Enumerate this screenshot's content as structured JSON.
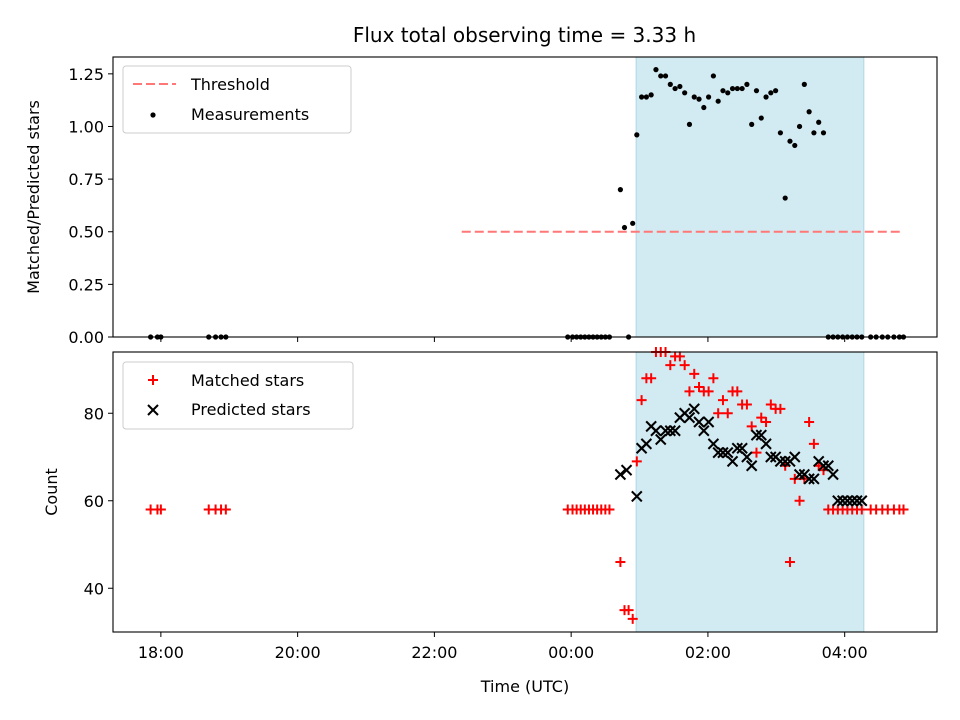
{
  "chart_data": [
    {
      "type": "scatter",
      "title": "Flux total observing time = 3.33 h",
      "ylabel": "Matched/Predicted stars",
      "ylim": [
        0,
        1.33
      ],
      "yticks": [
        "0.00",
        "0.25",
        "0.50",
        "0.75",
        "1.00",
        "1.25"
      ],
      "ytick_values": [
        0,
        0.25,
        0.5,
        0.75,
        1.0,
        1.25
      ],
      "grid": false,
      "legend": "top-left",
      "shaded_interval_hours": [
        0.95,
        4.28
      ],
      "shade_color": "#add8e6",
      "threshold": {
        "name": "Threshold",
        "y": 0.5,
        "x_range_hours": [
          -1.6,
          4.85
        ],
        "color": "#ff7777"
      },
      "series": [
        {
          "name": "Measurements",
          "color": "#000000",
          "x_hours": [
            -6.15,
            -6.05,
            -6.0,
            -5.3,
            -5.2,
            -5.12,
            -5.05,
            -0.05,
            0.02,
            0.08,
            0.14,
            0.2,
            0.26,
            0.32,
            0.38,
            0.44,
            0.5,
            0.56,
            0.72,
            0.78,
            0.84,
            0.9,
            0.96,
            1.03,
            1.1,
            1.17,
            1.24,
            1.31,
            1.38,
            1.45,
            1.52,
            1.59,
            1.66,
            1.73,
            1.8,
            1.87,
            1.94,
            2.01,
            2.08,
            2.15,
            2.22,
            2.29,
            2.36,
            2.43,
            2.5,
            2.57,
            2.64,
            2.71,
            2.78,
            2.85,
            2.92,
            2.99,
            3.06,
            3.13,
            3.2,
            3.27,
            3.34,
            3.41,
            3.48,
            3.55,
            3.62,
            3.69,
            3.76,
            3.83,
            3.9,
            3.97,
            4.04,
            4.11,
            4.18,
            4.25,
            4.38,
            4.46,
            4.55,
            4.63,
            4.72,
            4.8,
            4.86
          ],
          "y": [
            0,
            0,
            0,
            0,
            0,
            0,
            0,
            0,
            0,
            0,
            0,
            0,
            0,
            0,
            0,
            0,
            0,
            0,
            0.7,
            0.52,
            0,
            0.54,
            0.96,
            1.14,
            1.14,
            1.15,
            1.27,
            1.24,
            1.24,
            1.2,
            1.18,
            1.19,
            1.16,
            1.01,
            1.14,
            1.13,
            1.09,
            1.14,
            1.24,
            1.12,
            1.17,
            1.16,
            1.18,
            1.18,
            1.18,
            1.2,
            1.01,
            1.17,
            1.04,
            1.14,
            1.16,
            1.17,
            0.97,
            0.66,
            0.93,
            0.91,
            1.0,
            1.2,
            1.07,
            0.97,
            1.02,
            0.97,
            0,
            0,
            0,
            0,
            0,
            0,
            0,
            0,
            0,
            0,
            0,
            0,
            0,
            0,
            0
          ]
        }
      ],
      "x_axis_shared": true
    },
    {
      "type": "scatter",
      "xlabel": "Time (UTC)",
      "ylabel": "Count",
      "ylim": [
        30,
        94
      ],
      "yticks": [
        "40",
        "60",
        "80"
      ],
      "ytick_values": [
        40,
        60,
        80
      ],
      "xticks": [
        "18:00",
        "20:00",
        "22:00",
        "00:00",
        "02:00",
        "04:00"
      ],
      "xtick_hours": [
        -6,
        -4,
        -2,
        0,
        2,
        4
      ],
      "xlim_hours": [
        -6.7,
        5.35
      ],
      "grid": false,
      "legend": "top-left",
      "shaded_interval_hours": [
        0.95,
        4.28
      ],
      "shade_color": "#add8e6",
      "series": [
        {
          "name": "Matched stars",
          "marker": "plus",
          "color": "#ff0000",
          "x_hours": [
            -6.15,
            -6.05,
            -6.0,
            -5.3,
            -5.2,
            -5.12,
            -5.05,
            -0.05,
            0.02,
            0.08,
            0.14,
            0.2,
            0.26,
            0.32,
            0.38,
            0.44,
            0.5,
            0.56,
            0.72,
            0.78,
            0.84,
            0.9,
            0.96,
            1.03,
            1.1,
            1.17,
            1.24,
            1.31,
            1.38,
            1.45,
            1.52,
            1.59,
            1.66,
            1.73,
            1.8,
            1.87,
            1.94,
            2.01,
            2.08,
            2.15,
            2.22,
            2.29,
            2.36,
            2.43,
            2.5,
            2.57,
            2.64,
            2.71,
            2.78,
            2.85,
            2.92,
            2.99,
            3.06,
            3.13,
            3.2,
            3.27,
            3.34,
            3.41,
            3.48,
            3.55,
            3.62,
            3.69,
            3.76,
            3.83,
            3.9,
            3.97,
            4.04,
            4.11,
            4.18,
            4.25,
            4.38,
            4.46,
            4.55,
            4.63,
            4.72,
            4.8,
            4.86
          ],
          "y": [
            58,
            58,
            58,
            58,
            58,
            58,
            58,
            58,
            58,
            58,
            58,
            58,
            58,
            58,
            58,
            58,
            58,
            58,
            46,
            35,
            35,
            33,
            69,
            83,
            88,
            88,
            94,
            94,
            94,
            91,
            93,
            93,
            91,
            85,
            89,
            86,
            85,
            85,
            88,
            80,
            83,
            80,
            85,
            85,
            82,
            82,
            77,
            71,
            79,
            78,
            82,
            81,
            81,
            68,
            46,
            65,
            60,
            65,
            78,
            73,
            68,
            67,
            58,
            58,
            58,
            58,
            58,
            58,
            58,
            58,
            58,
            58,
            58,
            58,
            58,
            58,
            58
          ]
        },
        {
          "name": "Predicted stars",
          "marker": "x",
          "color": "#000000",
          "x_hours": [
            0.72,
            0.81,
            0.96,
            1.03,
            1.1,
            1.17,
            1.24,
            1.31,
            1.38,
            1.45,
            1.52,
            1.59,
            1.66,
            1.73,
            1.8,
            1.87,
            1.94,
            2.01,
            2.08,
            2.15,
            2.22,
            2.29,
            2.36,
            2.43,
            2.5,
            2.57,
            2.64,
            2.71,
            2.78,
            2.85,
            2.92,
            2.99,
            3.06,
            3.13,
            3.2,
            3.27,
            3.34,
            3.41,
            3.48,
            3.55,
            3.62,
            3.69,
            3.76,
            3.83,
            3.9,
            3.97,
            4.04,
            4.11,
            4.18,
            4.25
          ],
          "y": [
            66,
            67,
            61,
            72,
            73,
            77,
            76,
            74,
            76,
            76,
            76,
            79,
            80,
            79,
            81,
            78,
            76,
            78,
            73,
            71,
            71,
            71,
            69,
            72,
            72,
            70,
            68,
            75,
            75,
            73,
            70,
            70,
            69,
            69,
            69,
            70,
            66,
            66,
            65,
            65,
            69,
            68,
            68,
            66,
            60,
            60,
            60,
            60,
            60,
            60
          ]
        }
      ]
    }
  ]
}
